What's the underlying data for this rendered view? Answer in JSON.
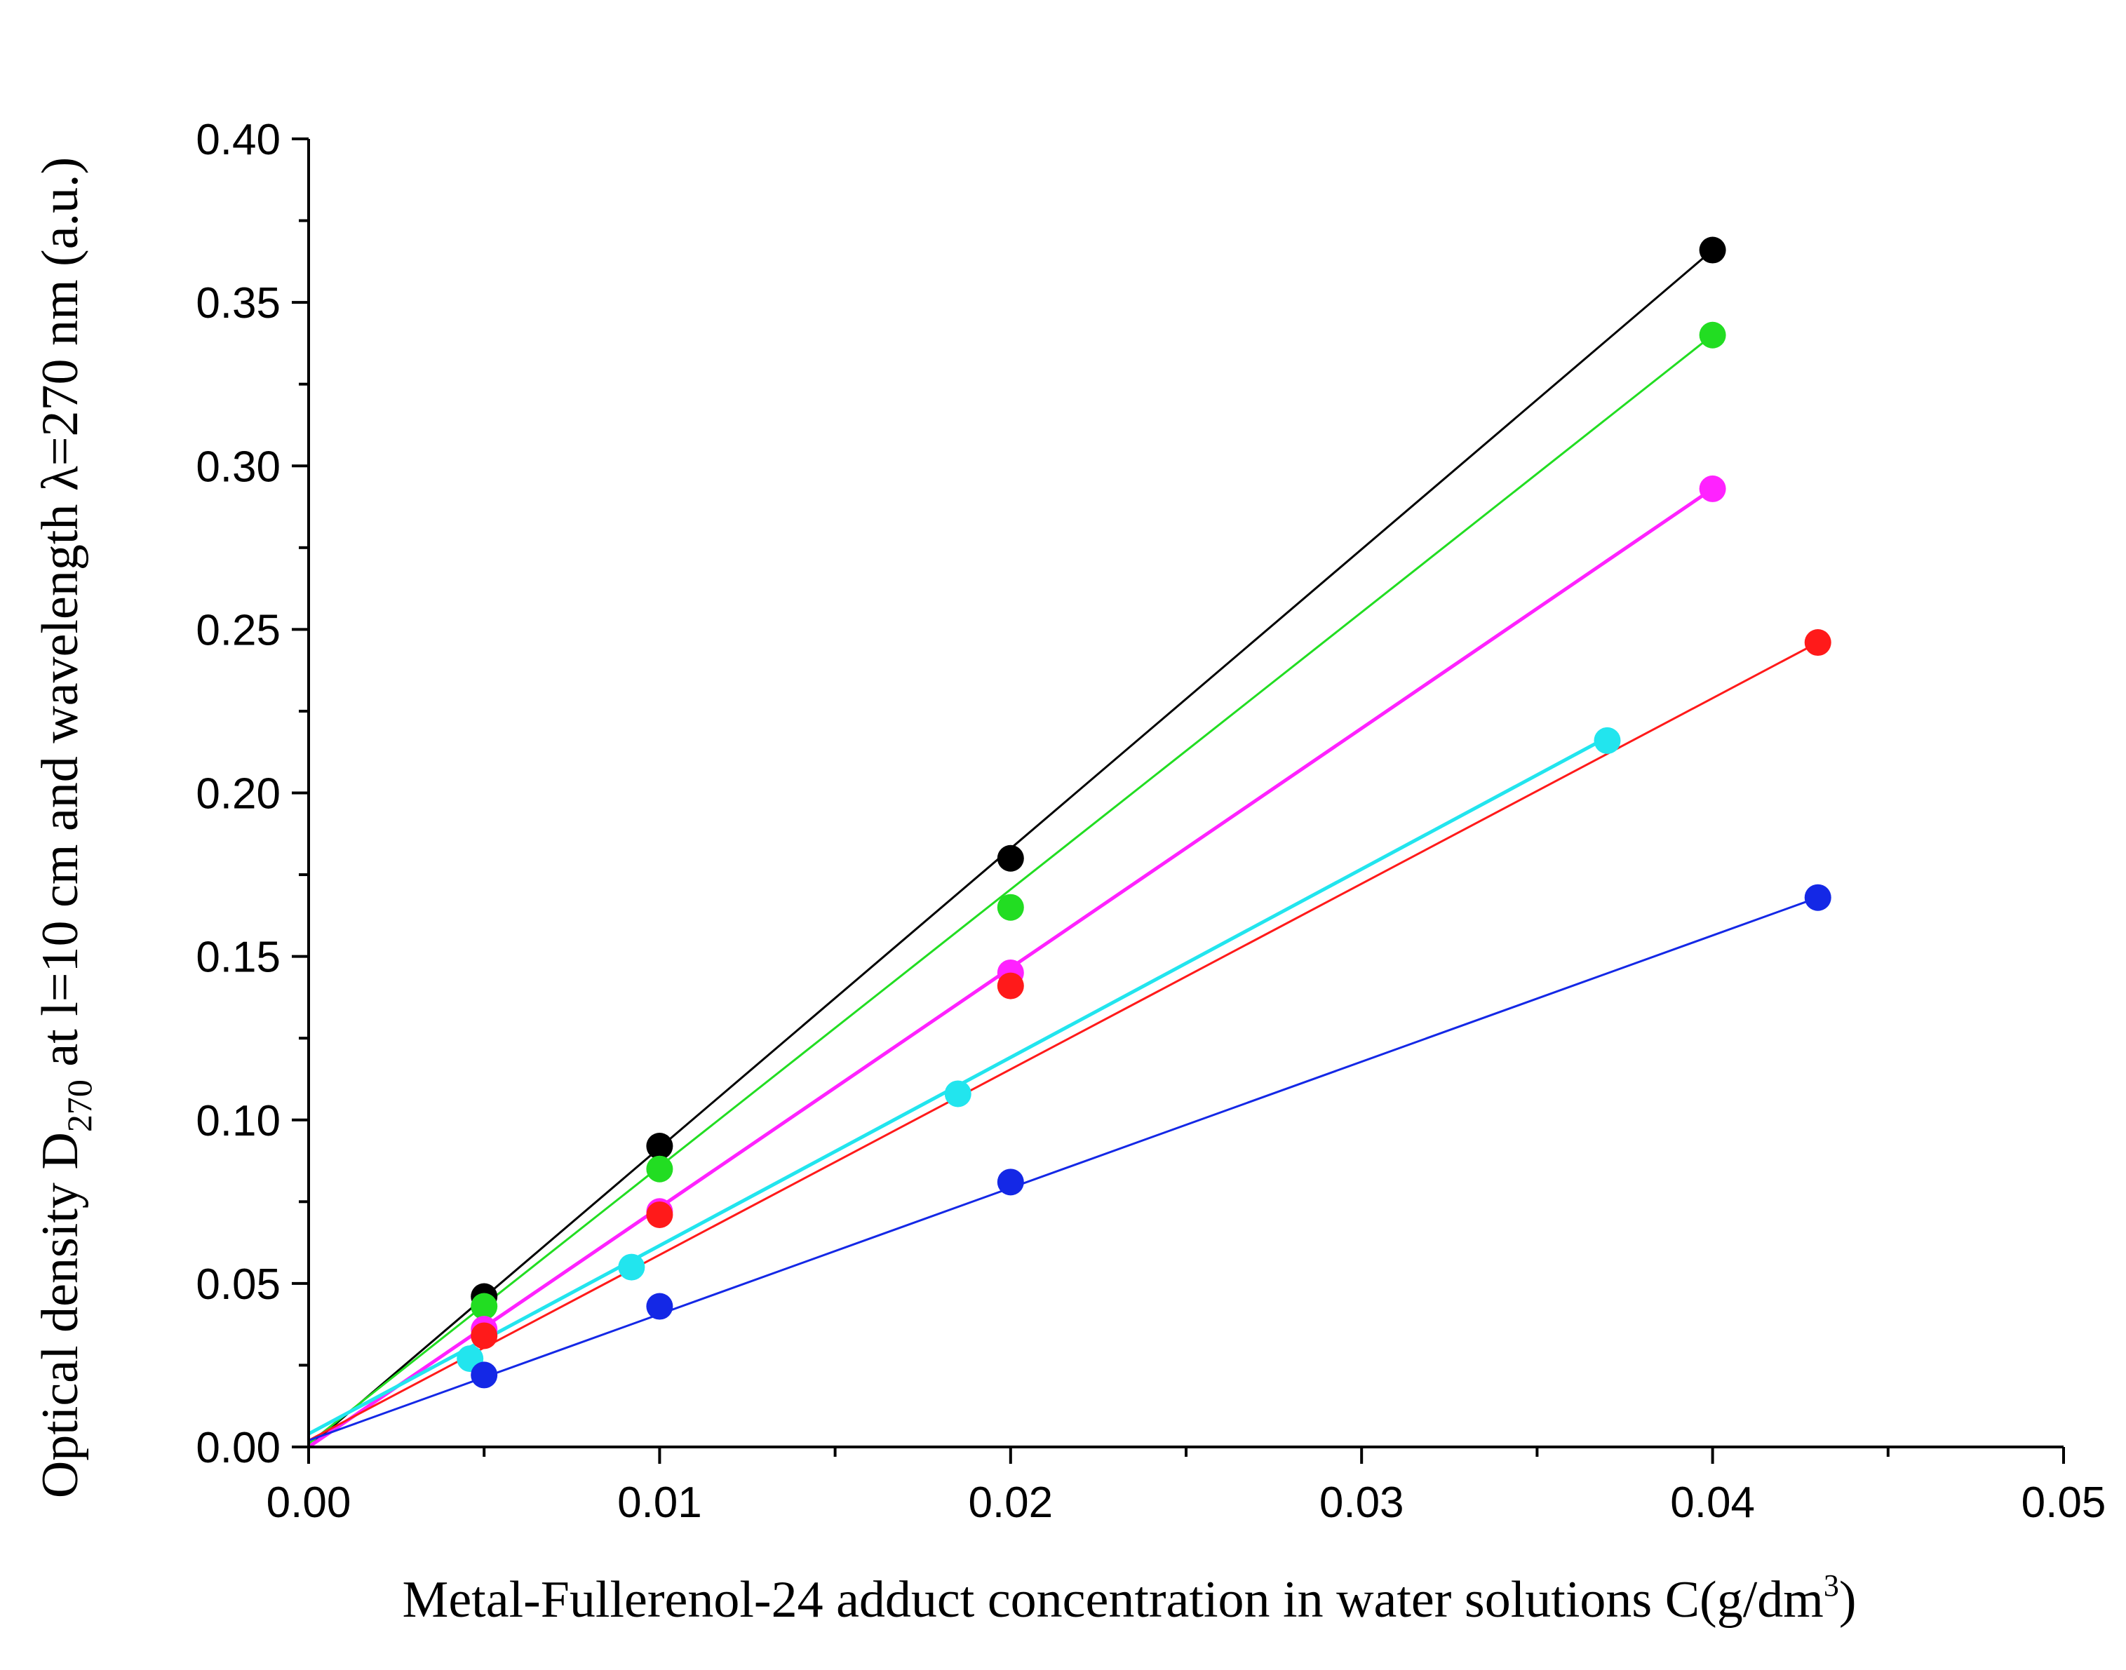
{
  "chart_data": {
    "type": "scatter",
    "title": "",
    "xlabel": {
      "main": "Metal-Fullerenol-24 adduct concentration in water solutions C(g/dm",
      "sup": "3",
      "tail": ")"
    },
    "ylabel": {
      "prefix": "Optical density D",
      "sub": "270",
      "suffix": " at l=10 cm and wavelength λ=270 nm (a.u.)"
    },
    "xlim": [
      0,
      0.05
    ],
    "ylim": [
      0,
      0.4
    ],
    "x_ticks": [
      "0.00",
      "0.01",
      "0.02",
      "0.03",
      "0.04",
      "0.05"
    ],
    "y_ticks": [
      "0.00",
      "0.05",
      "0.10",
      "0.15",
      "0.20",
      "0.25",
      "0.30",
      "0.35",
      "0.40"
    ],
    "grid": false,
    "legend": "none",
    "series": [
      {
        "name": "black",
        "color": "#000000",
        "points": [
          [
            0.005,
            0.046
          ],
          [
            0.01,
            0.092
          ],
          [
            0.02,
            0.18
          ],
          [
            0.04,
            0.366
          ]
        ],
        "fit": [
          [
            0,
            0.0
          ],
          [
            0.04,
            0.366
          ]
        ]
      },
      {
        "name": "green",
        "color": "#22dd22",
        "points": [
          [
            0.005,
            0.043
          ],
          [
            0.01,
            0.085
          ],
          [
            0.02,
            0.165
          ],
          [
            0.04,
            0.34
          ]
        ],
        "fit": [
          [
            0,
            0.001
          ],
          [
            0.04,
            0.34
          ]
        ]
      },
      {
        "name": "magenta",
        "color": "#ff22ff",
        "points": [
          [
            0.005,
            0.036
          ],
          [
            0.01,
            0.072
          ],
          [
            0.02,
            0.145
          ],
          [
            0.04,
            0.293
          ]
        ],
        "fit": [
          [
            0,
            0.0
          ],
          [
            0.04,
            0.293
          ]
        ]
      },
      {
        "name": "red",
        "color": "#ff1a1a",
        "points": [
          [
            0.005,
            0.034
          ],
          [
            0.01,
            0.071
          ],
          [
            0.02,
            0.141
          ],
          [
            0.043,
            0.246
          ]
        ],
        "fit": [
          [
            0,
            0.002
          ],
          [
            0.043,
            0.246
          ]
        ]
      },
      {
        "name": "cyan",
        "color": "#22e5ee",
        "points": [
          [
            0.0046,
            0.027
          ],
          [
            0.0092,
            0.055
          ],
          [
            0.0185,
            0.108
          ],
          [
            0.037,
            0.216
          ]
        ],
        "fit": [
          [
            0,
            0.004
          ],
          [
            0.037,
            0.217
          ]
        ]
      },
      {
        "name": "blue",
        "color": "#1428e6",
        "points": [
          [
            0.005,
            0.022
          ],
          [
            0.01,
            0.043
          ],
          [
            0.02,
            0.081
          ],
          [
            0.043,
            0.168
          ]
        ],
        "fit": [
          [
            0,
            0.002
          ],
          [
            0.043,
            0.168
          ]
        ]
      }
    ]
  }
}
